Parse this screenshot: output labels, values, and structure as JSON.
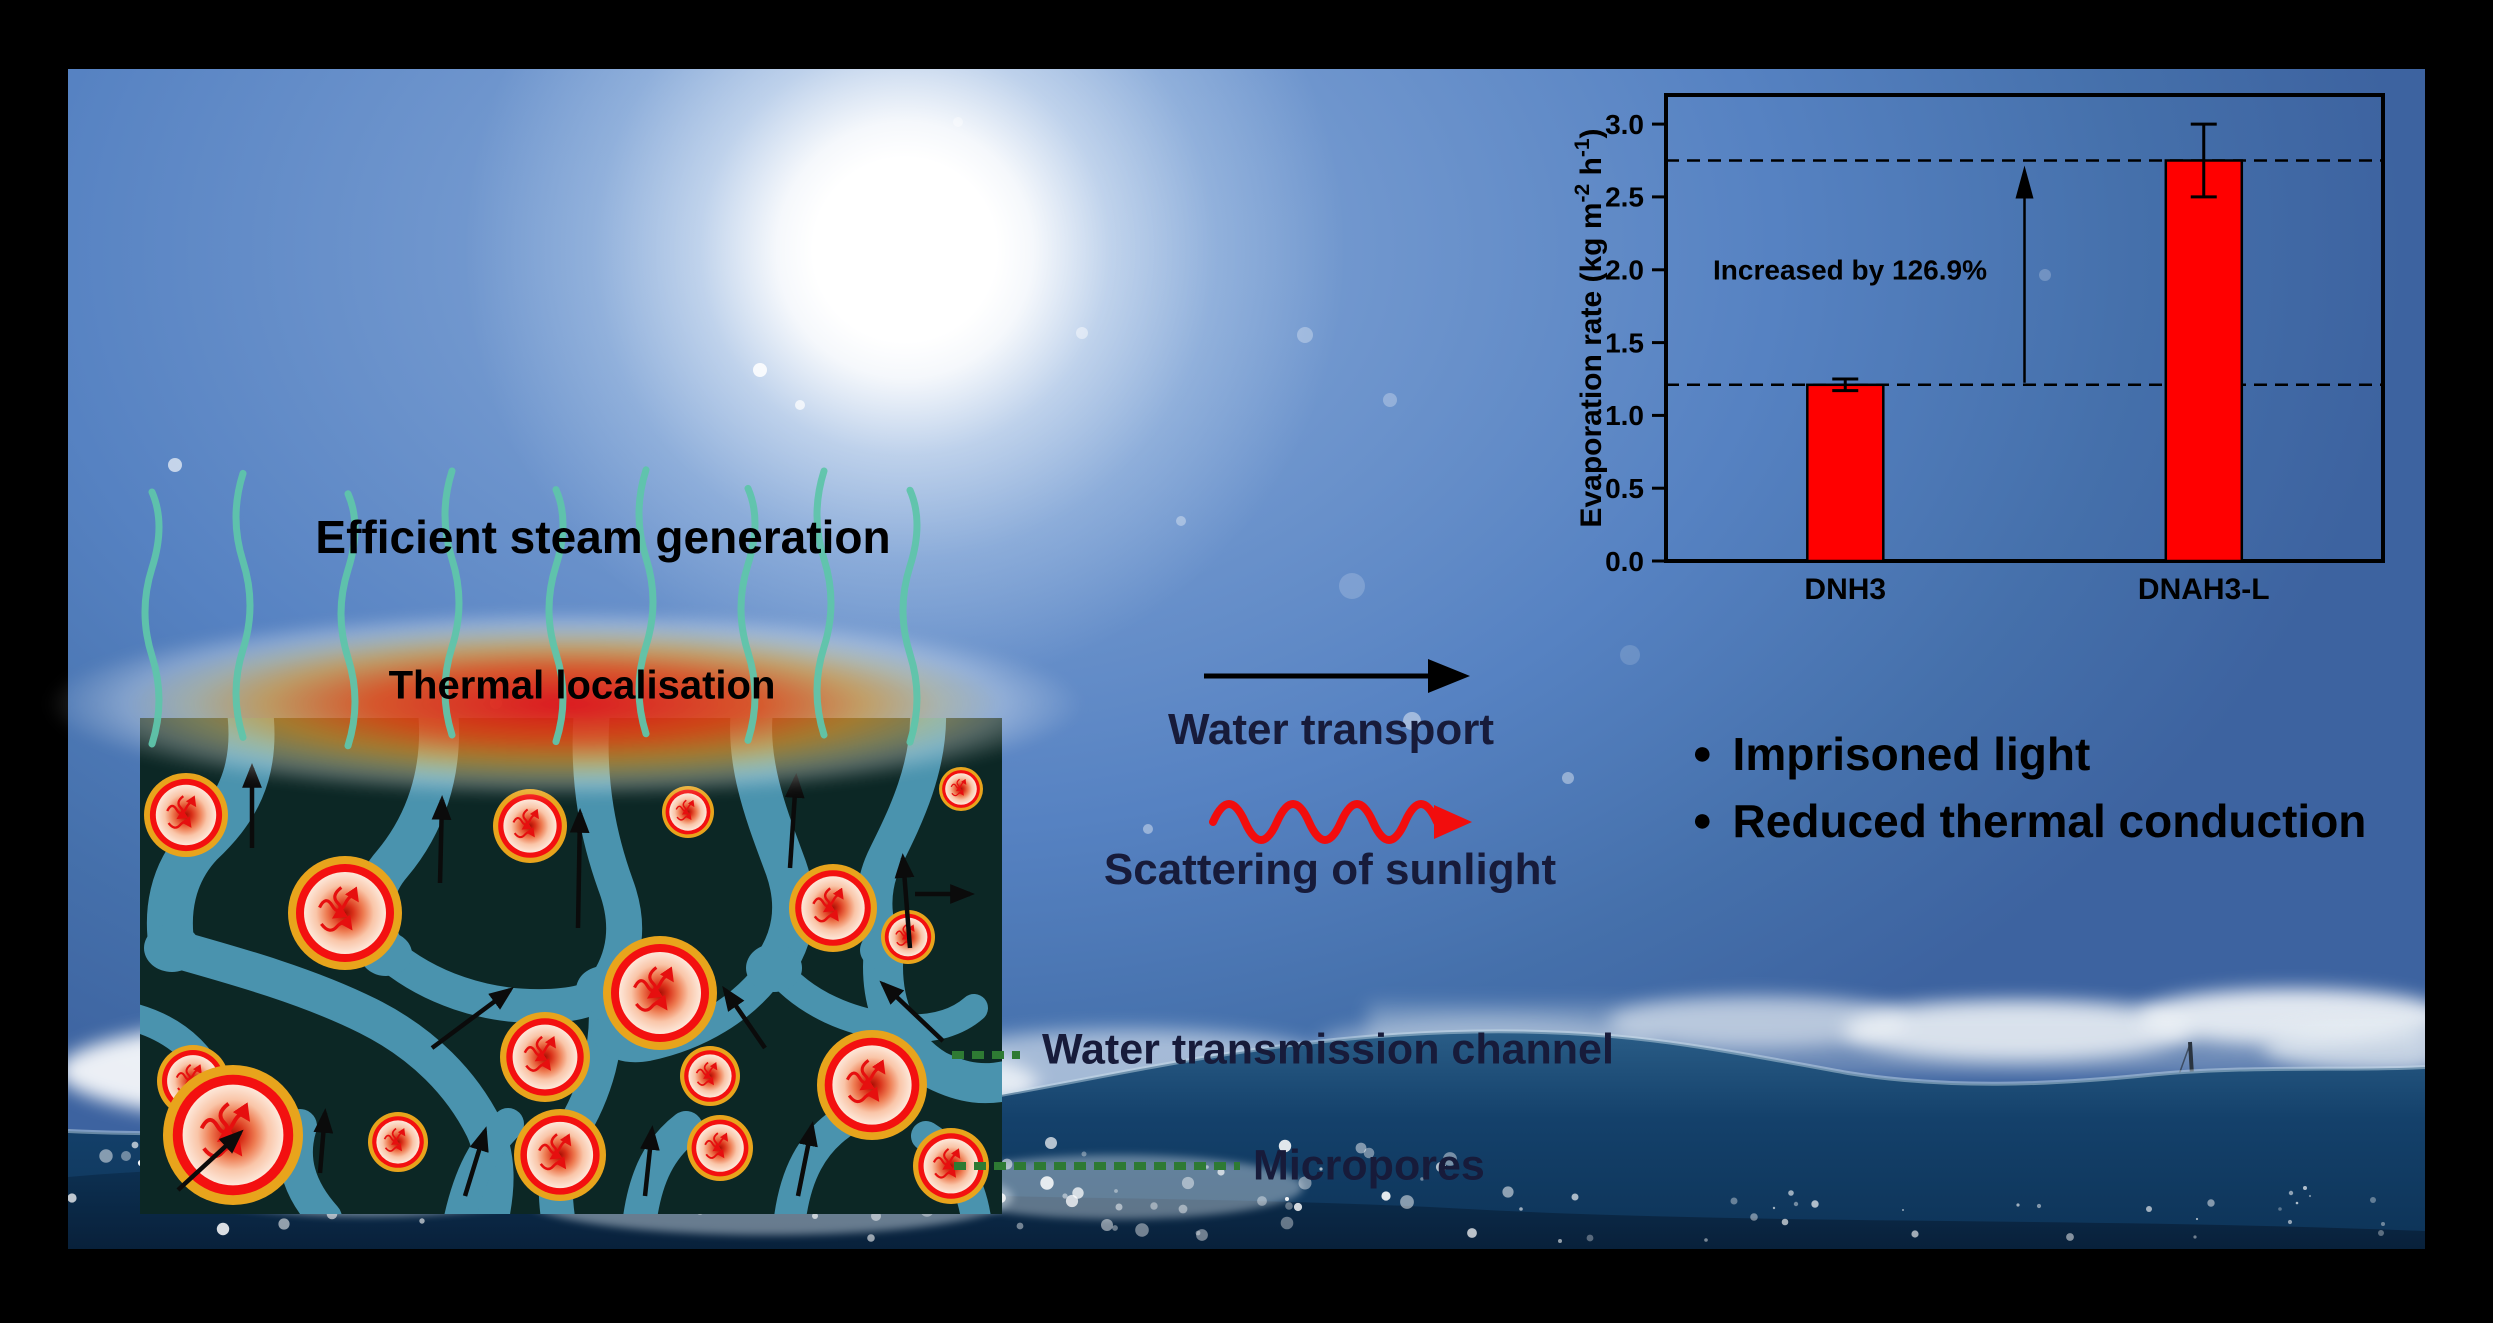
{
  "labels": {
    "steam": "Efficient steam generation",
    "thermal": "Thermal localisation",
    "water_transport": "Water transport",
    "scattering": "Scattering of sunlight",
    "channel": "Water transmission channel",
    "micropores": "Micropores"
  },
  "bullet_marker": "●",
  "bullets": [
    "Imprisoned light",
    "Reduced thermal conduction"
  ],
  "chart_data": {
    "type": "bar",
    "categories": [
      "DNH3",
      "DNAH3-L"
    ],
    "values": [
      1.21,
      2.75
    ],
    "errors": [
      0.04,
      0.25
    ],
    "title": "",
    "xlabel": "",
    "ylabel": "Evaporation rate (kg m-2 h-1)",
    "ylabel_parts": [
      "Evaporation rate (kg m",
      "-2",
      " h",
      "-1",
      ")"
    ],
    "ylim": [
      0,
      3.2
    ],
    "yticks": [
      0,
      0.5,
      1,
      1.5,
      2,
      2.5,
      3
    ],
    "annotation": "Increased by 126.9%",
    "reference_lines": [
      1.21,
      2.75
    ],
    "bar_color": "#ff0000",
    "grid": false,
    "legend": false
  },
  "colors": {
    "navy_text": "#171b3a",
    "black_text": "#000000",
    "steam_line": "#5fc5ab",
    "water_channel": "#4a93ae",
    "panel_background": "#0c2725",
    "pore_gold_ring": "#e8a41c",
    "pore_red_ring": "#f31010",
    "dash_green": "#2e7a33",
    "scatter_arrow_red": "#f20d0d",
    "bar_red": "#ff0000"
  }
}
